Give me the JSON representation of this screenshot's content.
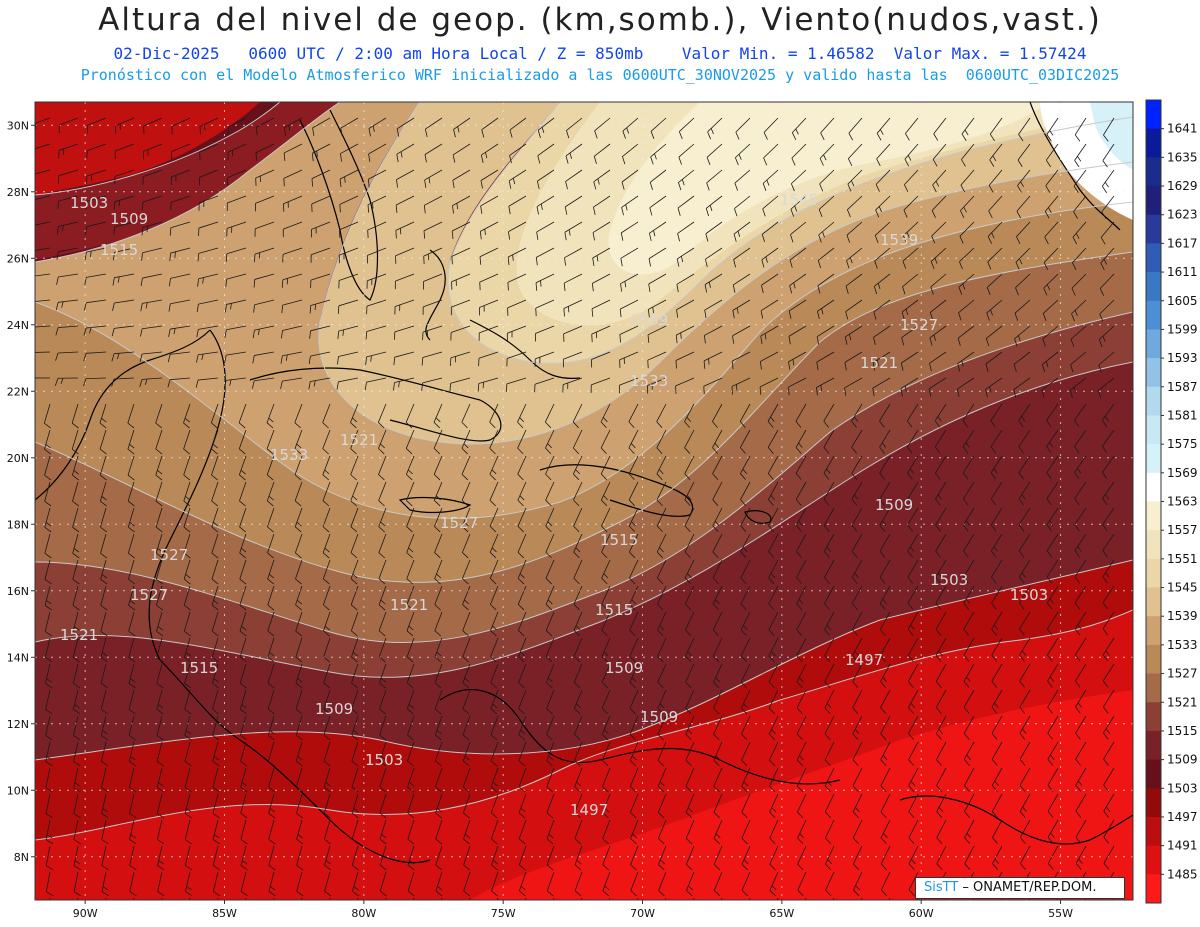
{
  "header": {
    "title": "Altura del nivel de geop. (km,somb.), Viento(nudos,vast.)",
    "line1": "02-Dic-2025   0600 UTC / 2:00 am Hora Local / Z = 850mb    Valor Min. = 1.46582  Valor Max. = 1.57424",
    "line2": "Pronóstico con el Modelo Atmosferico WRF inicializado a las 0600UTC_30NOV2025 y valido hasta las  0600UTC_03DIC2025"
  },
  "axes": {
    "lat_labels": [
      "30N",
      "28N",
      "26N",
      "24N",
      "22N",
      "20N",
      "18N",
      "16N",
      "14N",
      "12N",
      "10N",
      "8N"
    ],
    "lat_values": [
      30,
      28,
      26,
      24,
      22,
      20,
      18,
      16,
      14,
      12,
      10,
      8
    ],
    "lon_labels": [
      "90W",
      "85W",
      "80W",
      "75W",
      "70W",
      "65W",
      "60W",
      "55W"
    ],
    "lon_values": [
      -90,
      -85,
      -80,
      -75,
      -70,
      -65,
      -60,
      -55
    ]
  },
  "colorbar": {
    "labels": [
      "1641",
      "1635",
      "1629",
      "1623",
      "1617",
      "1611",
      "1605",
      "1599",
      "1593",
      "1587",
      "1581",
      "1575",
      "1569",
      "1563",
      "1557",
      "1551",
      "1545",
      "1539",
      "1533",
      "1527",
      "1521",
      "1515",
      "1509",
      "1503",
      "1497",
      "1491",
      "1485"
    ],
    "colors": [
      "#0022ff",
      "#0b1a9a",
      "#1a2c8c",
      "#20207a",
      "#2a3a9a",
      "#2f5cb4",
      "#3a78c4",
      "#4d8fd4",
      "#6fa9de",
      "#92c3e6",
      "#b3d9ef",
      "#c8e8f4",
      "#d6f2f8",
      "#ffffff",
      "#f7efcf",
      "#f1e4bc",
      "#ead6a6",
      "#dfc290",
      "#cda270",
      "#b98a58",
      "#a56a48",
      "#8c3f35",
      "#7a2128",
      "#65101a",
      "#920a0a",
      "#bb0e0e",
      "#e01010",
      "#ff1a1a"
    ]
  },
  "contour_labels": [
    {
      "text": "1503"
    },
    {
      "text": "1509"
    },
    {
      "text": "1515"
    },
    {
      "text": "1521"
    },
    {
      "text": "1527"
    },
    {
      "text": "1533"
    },
    {
      "text": "1539"
    },
    {
      "text": "1545"
    },
    {
      "text": "1539"
    },
    {
      "text": "1533"
    },
    {
      "text": "1527"
    },
    {
      "text": "1521"
    },
    {
      "text": "1515"
    },
    {
      "text": "1509"
    },
    {
      "text": "1503"
    },
    {
      "text": "1509"
    },
    {
      "text": "1503"
    },
    {
      "text": "1497"
    },
    {
      "text": "1497"
    },
    {
      "text": "1509"
    },
    {
      "text": "1515"
    },
    {
      "text": "1521"
    },
    {
      "text": "1527"
    },
    {
      "text": "1521"
    },
    {
      "text": "1515"
    },
    {
      "text": "1509"
    },
    {
      "text": "1503"
    },
    {
      "text": "1527"
    }
  ],
  "credit": {
    "brand": "SisTT",
    "org": " – ONAMET/REP.DOM."
  },
  "colors": {
    "title": "#222222",
    "line1": "#1144ee",
    "line2": "#1a9be8"
  }
}
